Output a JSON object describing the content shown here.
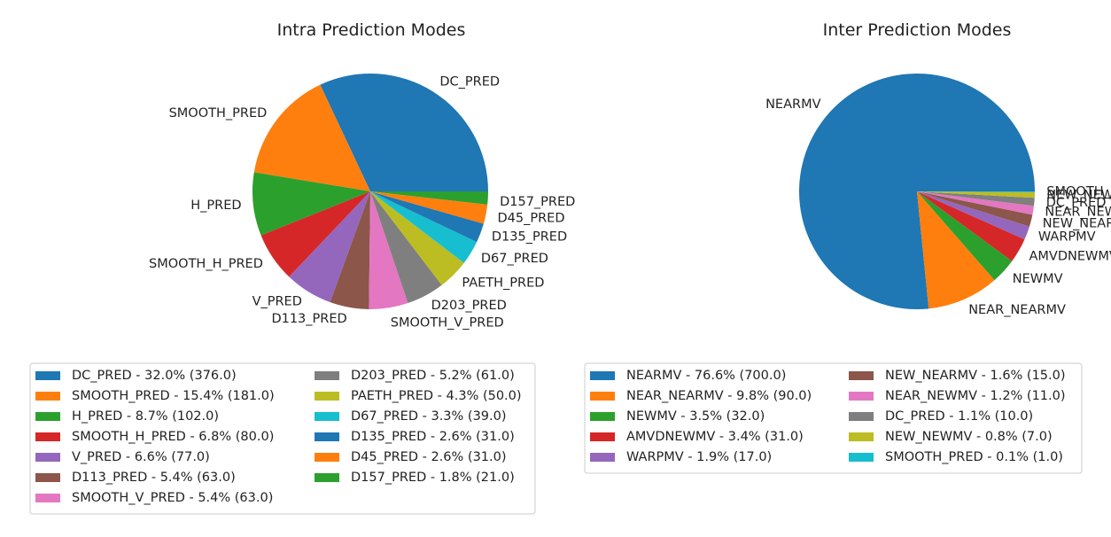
{
  "chart_data": [
    {
      "type": "pie",
      "title": "Intra Prediction Modes",
      "legend_position": "below",
      "slices": [
        {
          "label": "DC_PRED",
          "value": 376.0,
          "percent": 32.0,
          "color": "#1f77b4",
          "legend": "DC_PRED - 32.0% (376.0)"
        },
        {
          "label": "SMOOTH_PRED",
          "value": 181.0,
          "percent": 15.4,
          "color": "#ff7f0e",
          "legend": "SMOOTH_PRED - 15.4% (181.0)"
        },
        {
          "label": "H_PRED",
          "value": 102.0,
          "percent": 8.7,
          "color": "#2ca02c",
          "legend": "H_PRED - 8.7% (102.0)"
        },
        {
          "label": "SMOOTH_H_PRED",
          "value": 80.0,
          "percent": 6.8,
          "color": "#d62728",
          "legend": "SMOOTH_H_PRED - 6.8% (80.0)"
        },
        {
          "label": "V_PRED",
          "value": 77.0,
          "percent": 6.6,
          "color": "#9467bd",
          "legend": "V_PRED - 6.6% (77.0)"
        },
        {
          "label": "D113_PRED",
          "value": 63.0,
          "percent": 5.4,
          "color": "#8c564b",
          "legend": "D113_PRED - 5.4% (63.0)"
        },
        {
          "label": "SMOOTH_V_PRED",
          "value": 63.0,
          "percent": 5.4,
          "color": "#e377c2",
          "legend": "SMOOTH_V_PRED - 5.4% (63.0)"
        },
        {
          "label": "D203_PRED",
          "value": 61.0,
          "percent": 5.2,
          "color": "#7f7f7f",
          "legend": "D203_PRED - 5.2% (61.0)"
        },
        {
          "label": "PAETH_PRED",
          "value": 50.0,
          "percent": 4.3,
          "color": "#bcbd22",
          "legend": "PAETH_PRED - 4.3% (50.0)"
        },
        {
          "label": "D67_PRED",
          "value": 39.0,
          "percent": 3.3,
          "color": "#17becf",
          "legend": "D67_PRED - 3.3% (39.0)"
        },
        {
          "label": "D135_PRED",
          "value": 31.0,
          "percent": 2.6,
          "color": "#1f77b4",
          "legend": "D135_PRED - 2.6% (31.0)"
        },
        {
          "label": "D45_PRED",
          "value": 31.0,
          "percent": 2.6,
          "color": "#ff7f0e",
          "legend": "D45_PRED - 2.6% (31.0)"
        },
        {
          "label": "D157_PRED",
          "value": 21.0,
          "percent": 1.8,
          "color": "#2ca02c",
          "legend": "D157_PRED - 1.8% (21.0)"
        }
      ]
    },
    {
      "type": "pie",
      "title": "Inter Prediction Modes",
      "legend_position": "below",
      "slices": [
        {
          "label": "NEARMV",
          "value": 700.0,
          "percent": 76.6,
          "color": "#1f77b4",
          "legend": "NEARMV - 76.6% (700.0)"
        },
        {
          "label": "NEAR_NEARMV",
          "value": 90.0,
          "percent": 9.8,
          "color": "#ff7f0e",
          "legend": "NEAR_NEARMV - 9.8% (90.0)"
        },
        {
          "label": "NEWMV",
          "value": 32.0,
          "percent": 3.5,
          "color": "#2ca02c",
          "legend": "NEWMV - 3.5% (32.0)"
        },
        {
          "label": "AMVDNEWMV",
          "value": 31.0,
          "percent": 3.4,
          "color": "#d62728",
          "legend": "AMVDNEWMV - 3.4% (31.0)"
        },
        {
          "label": "WARPMV",
          "value": 17.0,
          "percent": 1.9,
          "color": "#9467bd",
          "legend": "WARPMV - 1.9% (17.0)"
        },
        {
          "label": "NEW_NEARMV",
          "value": 15.0,
          "percent": 1.6,
          "color": "#8c564b",
          "legend": "NEW_NEARMV - 1.6% (15.0)"
        },
        {
          "label": "NEAR_NEWMV",
          "value": 11.0,
          "percent": 1.2,
          "color": "#e377c2",
          "legend": "NEAR_NEWMV - 1.2% (11.0)"
        },
        {
          "label": "DC_PRED",
          "value": 10.0,
          "percent": 1.1,
          "color": "#7f7f7f",
          "legend": "DC_PRED - 1.1% (10.0)"
        },
        {
          "label": "NEW_NEWMV",
          "value": 7.0,
          "percent": 0.8,
          "color": "#bcbd22",
          "legend": "NEW_NEWMV - 0.8% (7.0)"
        },
        {
          "label": "SMOOTH_PRED",
          "value": 1.0,
          "percent": 0.1,
          "color": "#17becf",
          "legend": "SMOOTH_PRED - 0.1% (1.0)"
        }
      ]
    }
  ]
}
